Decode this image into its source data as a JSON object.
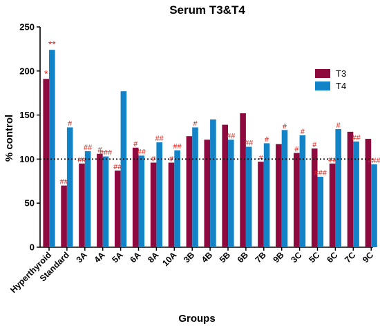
{
  "chart_data": {
    "type": "bar",
    "title": "Serum T3&T4",
    "xlabel": "Groups",
    "ylabel": "% control",
    "ylim": [
      0,
      250
    ],
    "yticks": [
      0,
      50,
      100,
      150,
      200,
      250
    ],
    "reference_line": 100,
    "legend_position": "right",
    "categories": [
      "Hyperthyroid",
      "Standard",
      "3A",
      "4A",
      "5A",
      "6A",
      "8A",
      "10A",
      "3B",
      "4B",
      "5B",
      "6B",
      "7B",
      "9B",
      "3C",
      "5C",
      "6C",
      "7C",
      "9C"
    ],
    "series": [
      {
        "name": "T3",
        "color": "#8e0a3e",
        "values": [
          191,
          70,
          95,
          106,
          87,
          113,
          96,
          96,
          126,
          122,
          139,
          152,
          97,
          117,
          107,
          112,
          95,
          131,
          123
        ],
        "annotations": [
          "*",
          "##",
          "##",
          "#",
          "##",
          "#",
          "#",
          "#",
          "",
          "",
          "",
          "",
          "#",
          "",
          "#",
          "#",
          "##",
          "",
          ""
        ]
      },
      {
        "name": "T4",
        "color": "#1283c6",
        "values": [
          224,
          136,
          109,
          103,
          177,
          104,
          119,
          110,
          136,
          145,
          122,
          114,
          118,
          133,
          127,
          80,
          134,
          120,
          94
        ],
        "annotations": [
          "**",
          "#",
          "##",
          "###",
          "",
          "##",
          "##",
          "##",
          "#",
          "",
          "##",
          "##",
          "#",
          "#",
          "#",
          "###",
          "#",
          "##",
          "###"
        ]
      }
    ]
  }
}
